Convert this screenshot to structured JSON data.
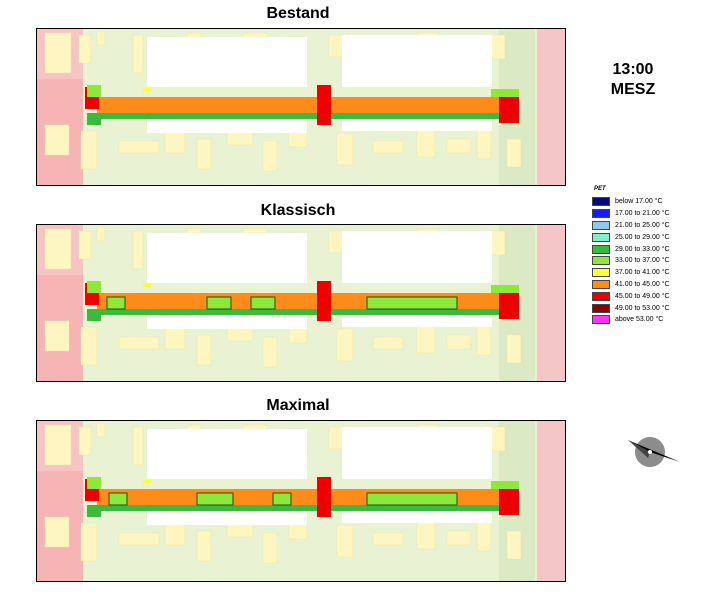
{
  "panels": [
    {
      "title": "Bestand",
      "trees": []
    },
    {
      "title": "Klassisch",
      "trees": [
        [
          70,
          88
        ],
        [
          170,
          194
        ],
        [
          214,
          238
        ],
        [
          330,
          420
        ]
      ]
    },
    {
      "title": "Maximal",
      "trees": [
        [
          72,
          90
        ],
        [
          160,
          196
        ],
        [
          236,
          254
        ],
        [
          330,
          420
        ]
      ]
    }
  ],
  "time": {
    "hour": "13:00",
    "zone": "MESZ"
  },
  "legend": {
    "title": "PET",
    "items": [
      {
        "label": "below 17.00 °C",
        "color": "#0a0a7a"
      },
      {
        "label": "17.00 to 21.00 °C",
        "color": "#1a1aff"
      },
      {
        "label": "21.00 to 25.00 °C",
        "color": "#8ec8f0"
      },
      {
        "label": "25.00 to 29.00 °C",
        "color": "#80f0c8"
      },
      {
        "label": "29.00 to 33.00 °C",
        "color": "#3cba3c"
      },
      {
        "label": "33.00 to 37.00 °C",
        "color": "#8ee83a"
      },
      {
        "label": "37.00 to 41.00 °C",
        "color": "#ffff33"
      },
      {
        "label": "41.00 to 45.00 °C",
        "color": "#ff8c1a"
      },
      {
        "label": "45.00 to 49.00 °C",
        "color": "#ee0000"
      },
      {
        "label": "49.00 to 53.00 °C",
        "color": "#8b0000"
      },
      {
        "label": "above 53.00 °C",
        "color": "#ff33ff"
      }
    ]
  },
  "north_arrow": {
    "icon": "north-arrow-icon"
  }
}
